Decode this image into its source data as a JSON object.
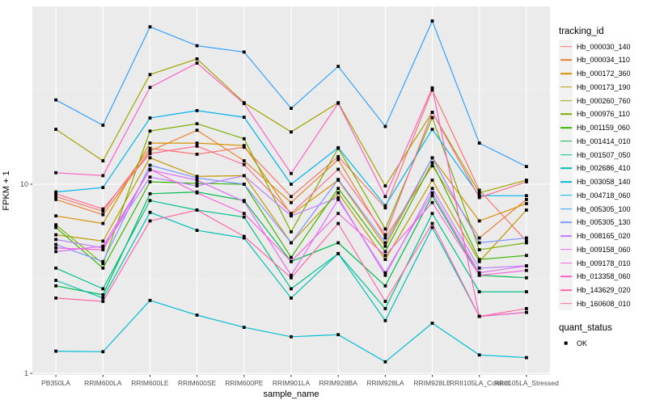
{
  "figure": {
    "background": "#FFFFFF",
    "panel_background": "#EBEBEB",
    "grid_color": "#FFFFFF",
    "tick_color": "#333333",
    "tick_label_color": "#4D4D4D",
    "marker_color": "#000000"
  },
  "axes": {
    "x": {
      "title": "sample_name"
    },
    "y": {
      "title": "FPKM + 1",
      "tick_labels": [
        "1",
        "10"
      ],
      "tick_values": [
        1,
        10
      ]
    }
  },
  "legend": {
    "tracking_title": "tracking_id",
    "quant_title": "quant_status",
    "quant_items": [
      {
        "label": "OK",
        "shape": "filled-square",
        "color": "#000000"
      }
    ]
  },
  "chart_data": {
    "type": "line",
    "title": "",
    "xlabel": "sample_name",
    "ylabel": "FPKM + 1",
    "y_scale": "log10",
    "ylim": [
      0.98,
      88
    ],
    "grid": true,
    "legend_position": "right",
    "marker": "filled-black-square",
    "categories": [
      "PB350LA",
      "RRIM600LA",
      "RRIM600LE",
      "RRIM600SE",
      "RRIM600PE",
      "RRIM901LA",
      "RRIM928BA",
      "RRIM928LA",
      "RRIM928LE",
      "RRII105LA_Control",
      "RRII105LA_Stressed"
    ],
    "series": [
      {
        "name": "Hb_000030_140",
        "color": "#F8766D",
        "values": [
          8.6,
          7.2,
          15.5,
          14.4,
          15.7,
          8.6,
          14.0,
          7.5,
          31.5,
          9.3,
          5.0
        ]
      },
      {
        "name": "Hb_000034_110",
        "color": "#EA8331",
        "values": [
          8.3,
          6.9,
          15.0,
          19.3,
          13.3,
          8.0,
          13.5,
          5.2,
          12.5,
          5.2,
          8.3
        ]
      },
      {
        "name": "Hb_000172_360",
        "color": "#D89000",
        "values": [
          6.8,
          6.2,
          16.5,
          16.5,
          16.0,
          6.9,
          10.5,
          4.7,
          13.8,
          6.4,
          7.9
        ]
      },
      {
        "name": "Hb_000173_190",
        "color": "#C09B00",
        "values": [
          5.4,
          5.0,
          13.8,
          11.0,
          11.1,
          4.9,
          9.0,
          4.0,
          10.5,
          3.9,
          7.3
        ]
      },
      {
        "name": "Hb_000260_760",
        "color": "#A3A500",
        "values": [
          19.5,
          13.3,
          38.0,
          46.0,
          27.0,
          18.9,
          27.0,
          9.8,
          24.0,
          9.0,
          10.5
        ]
      },
      {
        "name": "Hb_000976_110",
        "color": "#7CAE00",
        "values": [
          6.1,
          3.8,
          19.1,
          20.9,
          17.4,
          5.6,
          15.5,
          5.8,
          22.5,
          4.5,
          4.9
        ]
      },
      {
        "name": "Hb_001159_060",
        "color": "#39B600",
        "values": [
          5.9,
          3.6,
          10.3,
          10.1,
          10.0,
          4.1,
          9.5,
          4.4,
          13.0,
          4.0,
          4.2
        ]
      },
      {
        "name": "Hb_001414_010",
        "color": "#00BB4E",
        "values": [
          2.9,
          2.6,
          8.9,
          9.1,
          8.2,
          3.9,
          4.9,
          2.9,
          8.7,
          3.3,
          3.2
        ]
      },
      {
        "name": "Hb_001507_050",
        "color": "#00C08D",
        "values": [
          3.6,
          2.8,
          8.2,
          7.3,
          6.7,
          2.8,
          4.3,
          2.2,
          7.0,
          2.7,
          2.7
        ]
      },
      {
        "name": "Hb_002686_410",
        "color": "#00C0B5",
        "values": [
          3.1,
          2.5,
          7.1,
          5.7,
          5.2,
          2.5,
          4.3,
          1.9,
          5.9,
          2.0,
          2.1
        ]
      },
      {
        "name": "Hb_003058_140",
        "color": "#00BDD3",
        "values": [
          1.31,
          1.3,
          2.43,
          2.03,
          1.75,
          1.56,
          1.6,
          1.15,
          1.84,
          1.25,
          1.21
        ]
      },
      {
        "name": "Hb_004718_060",
        "color": "#00B4EF",
        "values": [
          9.1,
          9.6,
          22.4,
          24.5,
          22.6,
          10.0,
          15.6,
          7.7,
          19.5,
          8.7,
          8.7
        ]
      },
      {
        "name": "Hb_005305_100",
        "color": "#35A2FF",
        "values": [
          27.9,
          20.5,
          68.0,
          54.0,
          50.0,
          25.2,
          42.0,
          20.2,
          73.0,
          16.5,
          12.4
        ]
      },
      {
        "name": "Hb_005305_130",
        "color": "#7F96FF",
        "values": [
          4.8,
          3.9,
          12.6,
          10.8,
          10.0,
          4.9,
          10.6,
          4.9,
          13.8,
          4.9,
          5.2
        ]
      },
      {
        "name": "Hb_008165_020",
        "color": "#BC80FF",
        "values": [
          5.1,
          4.6,
          10.9,
          9.8,
          11.1,
          6.8,
          8.5,
          3.3,
          9.5,
          3.6,
          3.7
        ]
      },
      {
        "name": "Hb_009158_060",
        "color": "#E26EF7",
        "values": [
          4.4,
          4.7,
          11.9,
          10.5,
          8.1,
          3.3,
          8.3,
          3.4,
          9.0,
          3.4,
          3.7
        ]
      },
      {
        "name": "Hb_009178_010",
        "color": "#F863DF",
        "values": [
          4.6,
          4.5,
          12.0,
          9.0,
          7.0,
          3.9,
          7.0,
          4.2,
          8.0,
          3.3,
          3.5
        ]
      },
      {
        "name": "Hb_013358_060",
        "color": "#FF61C7",
        "values": [
          11.5,
          11.1,
          32.5,
          43.7,
          26.7,
          11.4,
          26.8,
          8.6,
          32.3,
          2.0,
          2.1
        ]
      },
      {
        "name": "Hb_143629_020",
        "color": "#FF67A8",
        "values": [
          2.5,
          2.4,
          6.4,
          7.3,
          5.3,
          3.2,
          6.2,
          2.4,
          6.2,
          2.0,
          2.2
        ]
      },
      {
        "name": "Hb_160608_010",
        "color": "#FF6C91",
        "values": [
          8.9,
          7.4,
          14.5,
          15.9,
          12.7,
          7.0,
          12.0,
          5.4,
          24.0,
          8.5,
          10.3
        ]
      }
    ]
  }
}
